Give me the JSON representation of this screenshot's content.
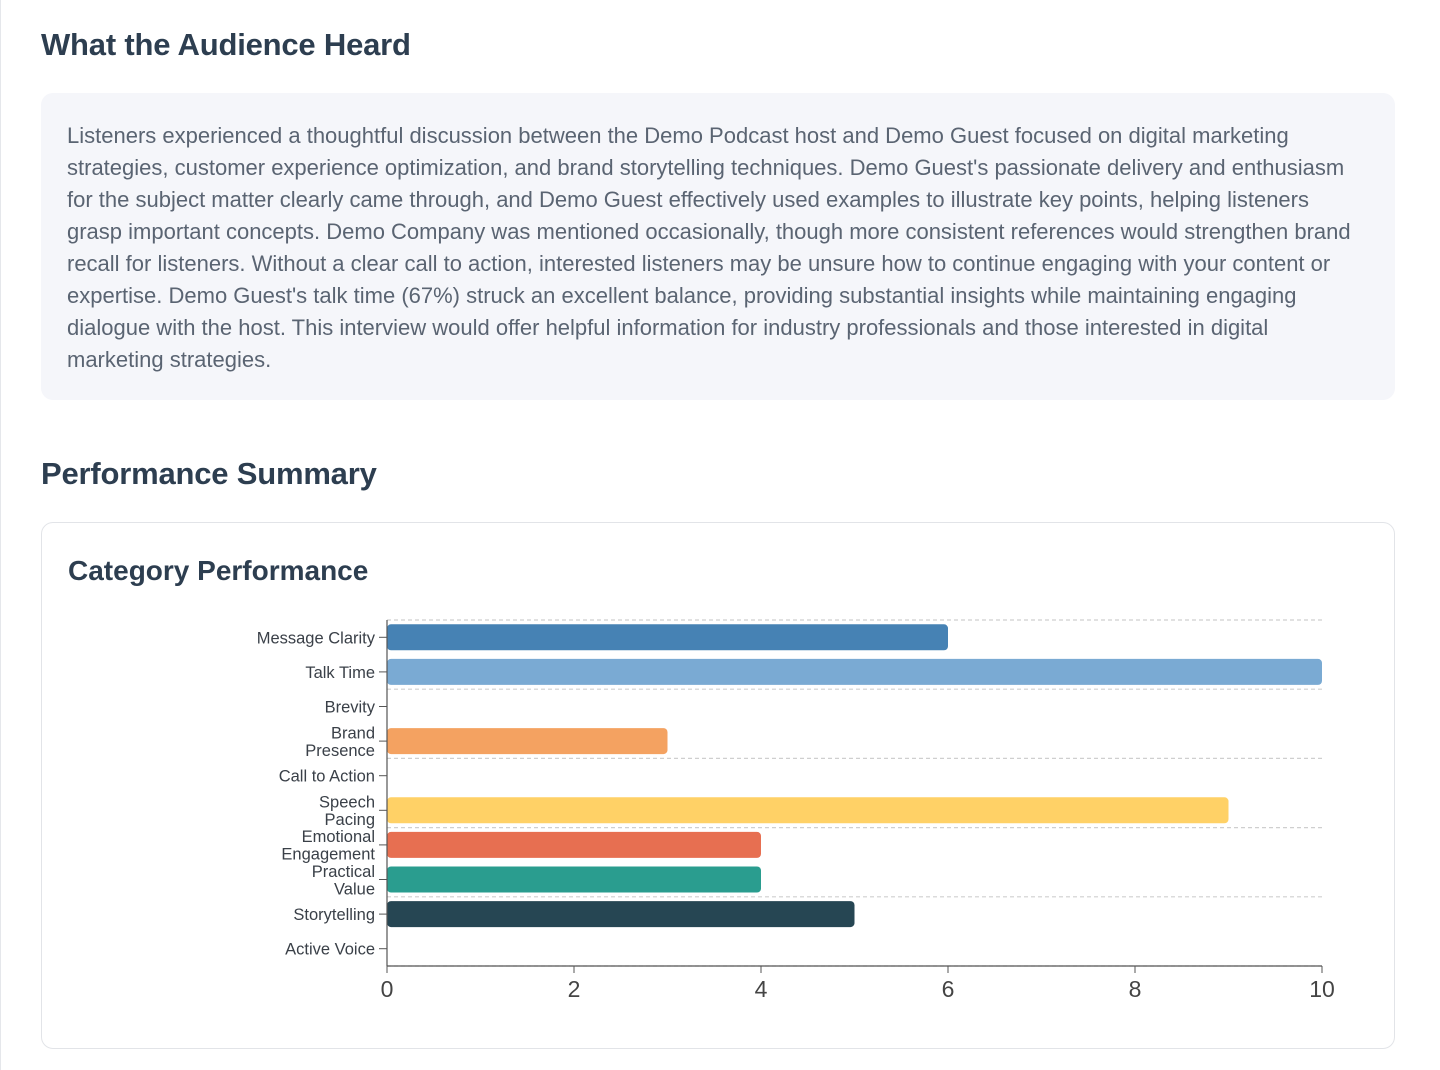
{
  "sections": {
    "audience_title": "What the Audience Heard",
    "audience_summary": "Listeners experienced a thoughtful discussion between the Demo Podcast host and Demo Guest focused on digital marketing strategies, customer experience optimization, and brand storytelling techniques. Demo Guest's passionate delivery and enthusiasm for the subject matter clearly came through, and Demo Guest effectively used examples to illustrate key points, helping listeners grasp important concepts. Demo Company was mentioned occasionally, though more consistent references would strengthen brand recall for listeners. Without a clear call to action, interested listeners may be unsure how to continue engaging with your content or expertise. Demo Guest's talk time (67%) struck an excellent balance, providing substantial insights while maintaining engaging dialogue with the host. This interview would offer helpful information for industry professionals and those interested in digital marketing strategies.",
    "performance_title": "Performance Summary"
  },
  "chart_data": {
    "type": "bar",
    "orientation": "horizontal",
    "title": "Category Performance",
    "xlabel": "",
    "ylabel": "",
    "xlim": [
      0,
      10
    ],
    "x_ticks": [
      "0",
      "2",
      "4",
      "6",
      "8",
      "10"
    ],
    "grid": "dashed horizontal lines",
    "categories": [
      {
        "label": [
          "Message Clarity"
        ],
        "value": 6,
        "color": "#4682b4"
      },
      {
        "label": [
          "Talk Time"
        ],
        "value": 10,
        "color": "#7aaad3"
      },
      {
        "label": [
          "Brevity"
        ],
        "value": 0,
        "color": "#cccccc"
      },
      {
        "label": [
          "Brand",
          "Presence"
        ],
        "value": 3,
        "color": "#f4a261"
      },
      {
        "label": [
          "Call to Action"
        ],
        "value": 0,
        "color": "#cccccc"
      },
      {
        "label": [
          "Speech",
          "Pacing"
        ],
        "value": 9,
        "color": "#ffd166"
      },
      {
        "label": [
          "Emotional",
          "Engagement"
        ],
        "value": 4,
        "color": "#e76f51"
      },
      {
        "label": [
          "Practical",
          "Value"
        ],
        "value": 4,
        "color": "#2a9d8f"
      },
      {
        "label": [
          "Storytelling"
        ],
        "value": 5,
        "color": "#264653"
      },
      {
        "label": [
          "Active Voice"
        ],
        "value": 0,
        "color": "#cccccc"
      }
    ]
  }
}
